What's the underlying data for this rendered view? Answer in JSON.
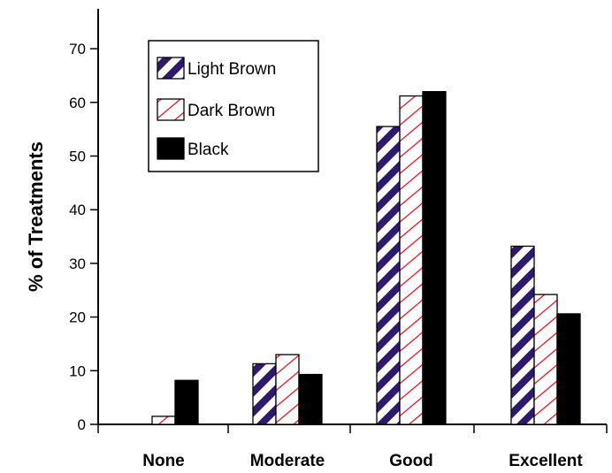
{
  "chart_data": {
    "type": "bar",
    "title": "",
    "xlabel": "",
    "ylabel": "% of Treatments",
    "ylim": [
      0,
      75
    ],
    "yticks": [
      0,
      10,
      20,
      30,
      40,
      50,
      60,
      70
    ],
    "categories": [
      "None",
      "Moderate",
      "Good",
      "Excellent"
    ],
    "series": [
      {
        "name": "Light Brown",
        "values": [
          0,
          11.3,
          55.5,
          33.2
        ],
        "color": "#2d1a6e",
        "pattern": "diagonal-stripes"
      },
      {
        "name": "Dark Brown",
        "values": [
          1.5,
          13,
          61.2,
          24.2
        ],
        "color": "#e8000f",
        "pattern": "diagonal-hatch"
      },
      {
        "name": "Black",
        "values": [
          8.2,
          9.3,
          62,
          20.6
        ],
        "color": "#000000",
        "pattern": "solid"
      }
    ],
    "grid": false,
    "legend": "top-left"
  }
}
